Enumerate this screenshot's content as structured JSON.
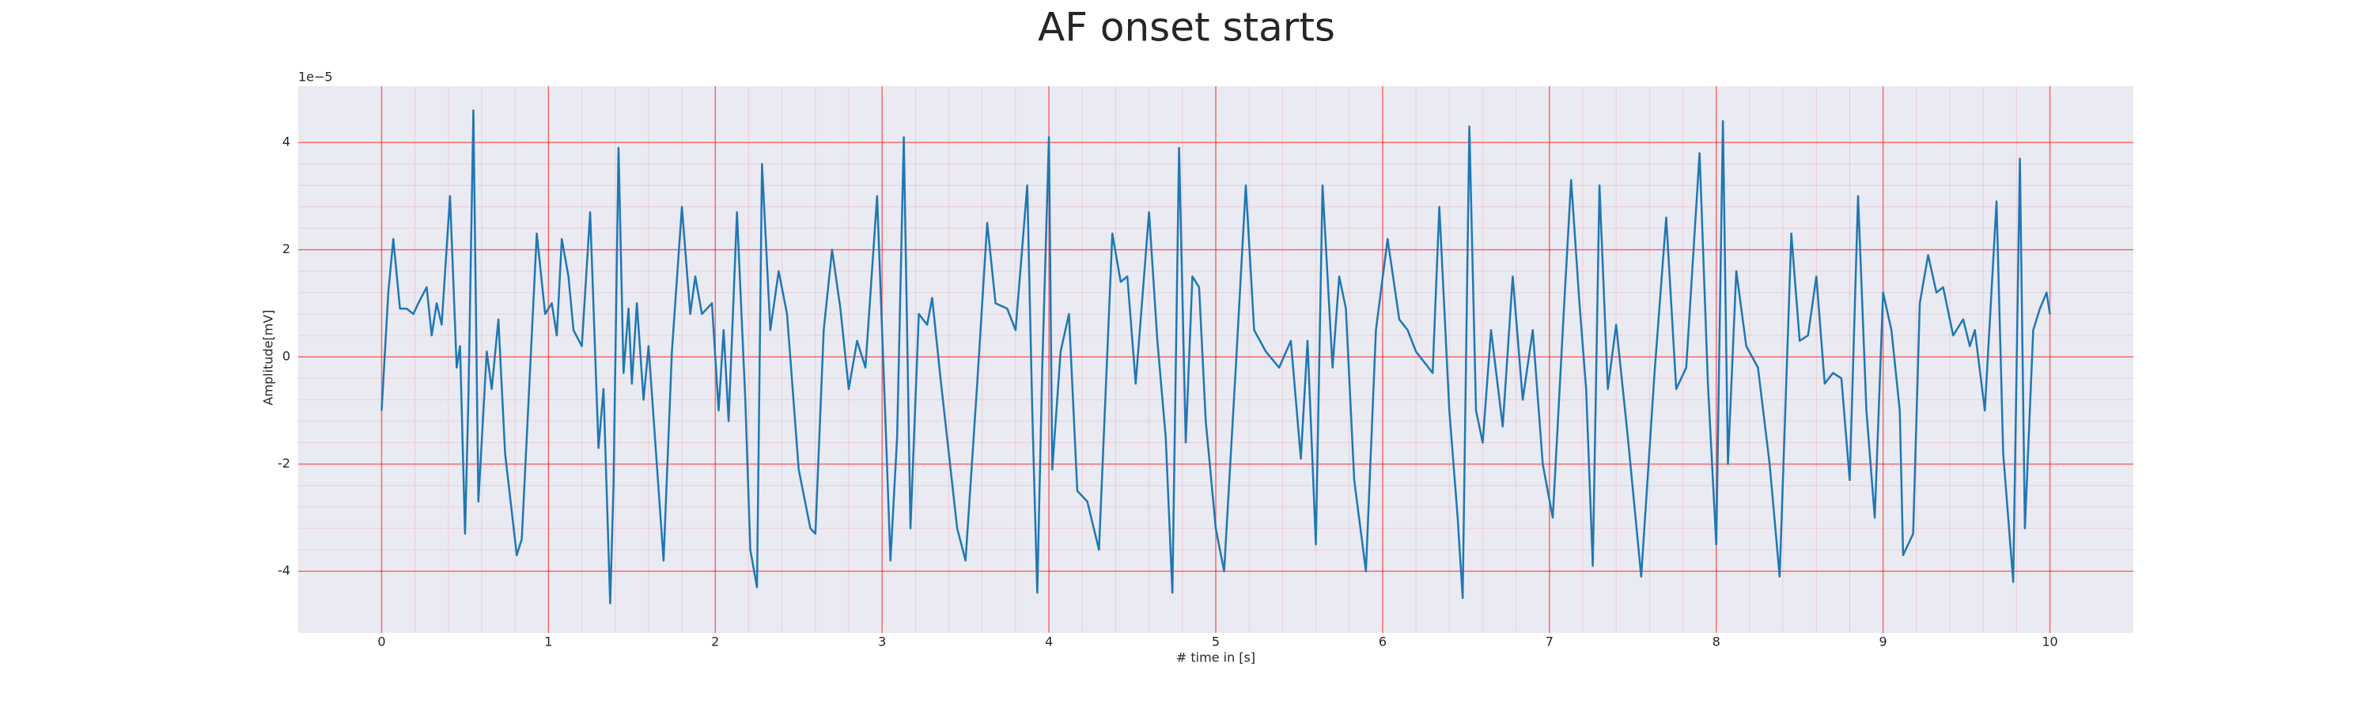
{
  "chart_data": {
    "type": "line",
    "title": "AF onset starts",
    "x_label": "# time in [s]",
    "y_label": "Amplitude[mV]",
    "y_offset_text": "1e−5",
    "x": [
      0,
      0.04,
      0.07,
      0.11,
      0.15,
      0.19,
      0.22,
      0.27,
      0.3,
      0.33,
      0.36,
      0.41,
      0.45,
      0.47,
      0.5,
      0.52,
      0.55,
      0.58,
      0.63,
      0.66,
      0.7,
      0.74,
      0.81,
      0.84,
      0.93,
      0.98,
      1.02,
      1.05,
      1.08,
      1.12,
      1.15,
      1.2,
      1.25,
      1.3,
      1.33,
      1.37,
      1.39,
      1.42,
      1.45,
      1.48,
      1.5,
      1.53,
      1.57,
      1.6,
      1.69,
      1.74,
      1.8,
      1.85,
      1.88,
      1.92,
      1.98,
      2.02,
      2.05,
      2.08,
      2.13,
      2.18,
      2.21,
      2.25,
      2.28,
      2.33,
      2.38,
      2.43,
      2.5,
      2.57,
      2.6,
      2.65,
      2.7,
      2.75,
      2.8,
      2.85,
      2.9,
      2.97,
      3.02,
      3.05,
      3.09,
      3.13,
      3.17,
      3.22,
      3.27,
      3.3,
      3.35,
      3.45,
      3.5,
      3.57,
      3.63,
      3.68,
      3.75,
      3.8,
      3.87,
      3.9,
      3.93,
      3.96,
      4.0,
      4.02,
      4.07,
      4.12,
      4.17,
      4.23,
      4.3,
      4.38,
      4.43,
      4.47,
      4.52,
      4.6,
      4.65,
      4.7,
      4.74,
      4.78,
      4.82,
      4.86,
      4.9,
      4.94,
      5.0,
      5.05,
      5.12,
      5.18,
      5.23,
      5.3,
      5.38,
      5.45,
      5.51,
      5.55,
      5.6,
      5.64,
      5.7,
      5.74,
      5.78,
      5.83,
      5.9,
      5.96,
      6.03,
      6.1,
      6.15,
      6.2,
      6.3,
      6.34,
      6.4,
      6.45,
      6.48,
      6.52,
      6.56,
      6.6,
      6.65,
      6.72,
      6.78,
      6.84,
      6.9,
      6.96,
      7.02,
      7.08,
      7.13,
      7.18,
      7.22,
      7.26,
      7.3,
      7.35,
      7.4,
      7.47,
      7.55,
      7.63,
      7.7,
      7.76,
      7.82,
      7.9,
      7.95,
      8.0,
      8.04,
      8.07,
      8.12,
      8.18,
      8.25,
      8.32,
      8.38,
      8.45,
      8.5,
      8.55,
      8.6,
      8.65,
      8.7,
      8.75,
      8.8,
      8.85,
      8.9,
      8.95,
      9.0,
      9.05,
      9.1,
      9.12,
      9.18,
      9.22,
      9.27,
      9.32,
      9.36,
      9.42,
      9.48,
      9.52,
      9.55,
      9.61,
      9.68,
      9.72,
      9.78,
      9.82,
      9.85,
      9.9,
      9.94,
      9.98,
      10.0
    ],
    "series": [
      {
        "color": "#1f77b4",
        "values": [
          -1.0,
          1.2,
          2.2,
          0.9,
          0.9,
          0.8,
          1.0,
          1.3,
          0.4,
          1.0,
          0.6,
          3.0,
          -0.2,
          0.2,
          -3.3,
          -0.8,
          4.6,
          -2.7,
          0.1,
          -0.6,
          0.7,
          -1.8,
          -3.7,
          -3.4,
          2.3,
          0.8,
          1.0,
          0.4,
          2.2,
          1.5,
          0.5,
          0.2,
          2.7,
          -1.7,
          -0.6,
          -4.6,
          -2.4,
          3.9,
          -0.3,
          0.9,
          -0.5,
          1.0,
          -0.8,
          0.2,
          -3.8,
          0.1,
          2.8,
          0.8,
          1.5,
          0.8,
          1.0,
          -1.0,
          0.5,
          -1.2,
          2.7,
          -0.8,
          -3.6,
          -4.3,
          3.6,
          0.5,
          1.6,
          0.8,
          -2.1,
          -3.2,
          -3.3,
          0.5,
          2.0,
          0.9,
          -0.6,
          0.3,
          -0.2,
          3.0,
          -1.2,
          -3.8,
          -1.5,
          4.1,
          -3.2,
          0.8,
          0.6,
          1.1,
          -0.4,
          -3.2,
          -3.8,
          -0.5,
          2.5,
          1.0,
          0.9,
          0.5,
          3.2,
          -1.0,
          -4.4,
          -0.2,
          4.1,
          -2.1,
          0.1,
          0.8,
          -2.5,
          -2.7,
          -3.6,
          2.3,
          1.4,
          1.5,
          -0.5,
          2.7,
          0.3,
          -1.5,
          -4.4,
          3.9,
          -1.6,
          1.5,
          1.3,
          -1.2,
          -3.2,
          -4.0,
          -0.2,
          3.2,
          0.5,
          0.1,
          -0.2,
          0.3,
          -1.9,
          0.3,
          -3.5,
          3.2,
          -0.2,
          1.5,
          0.9,
          -2.3,
          -4.0,
          0.5,
          2.2,
          0.7,
          0.5,
          0.1,
          -0.3,
          2.8,
          -1.0,
          -3.0,
          -4.5,
          4.3,
          -1.0,
          -1.6,
          0.5,
          -1.3,
          1.5,
          -0.8,
          0.5,
          -2.0,
          -3.0,
          0.5,
          3.3,
          1.0,
          -0.6,
          -3.9,
          3.2,
          -0.6,
          0.6,
          -1.5,
          -4.1,
          -0.3,
          2.6,
          -0.6,
          -0.2,
          3.8,
          -0.5,
          -3.5,
          4.4,
          -2.0,
          1.6,
          0.2,
          -0.2,
          -2.0,
          -4.1,
          2.3,
          0.3,
          0.4,
          1.5,
          -0.5,
          -0.3,
          -0.4,
          -2.3,
          3.0,
          -1.0,
          -3.0,
          1.2,
          0.5,
          -1.0,
          -3.7,
          -3.3,
          1.0,
          1.9,
          1.2,
          1.3,
          0.4,
          0.7,
          0.2,
          0.5,
          -1.0,
          2.9,
          -1.8,
          -4.2,
          3.7,
          -3.2,
          0.5,
          0.9,
          1.2,
          0.8
        ]
      }
    ],
    "xlim": [
      -0.5,
      10.5
    ],
    "ylim": [
      -5.15,
      5.05
    ],
    "xticks": [
      0,
      1,
      2,
      3,
      4,
      5,
      6,
      7,
      8,
      9,
      10
    ],
    "yticks": [
      -4,
      -2,
      0,
      2,
      4
    ],
    "grid": true,
    "minor_grid": true,
    "grid_color": "#ff0000",
    "background": "#eaeaf2"
  }
}
